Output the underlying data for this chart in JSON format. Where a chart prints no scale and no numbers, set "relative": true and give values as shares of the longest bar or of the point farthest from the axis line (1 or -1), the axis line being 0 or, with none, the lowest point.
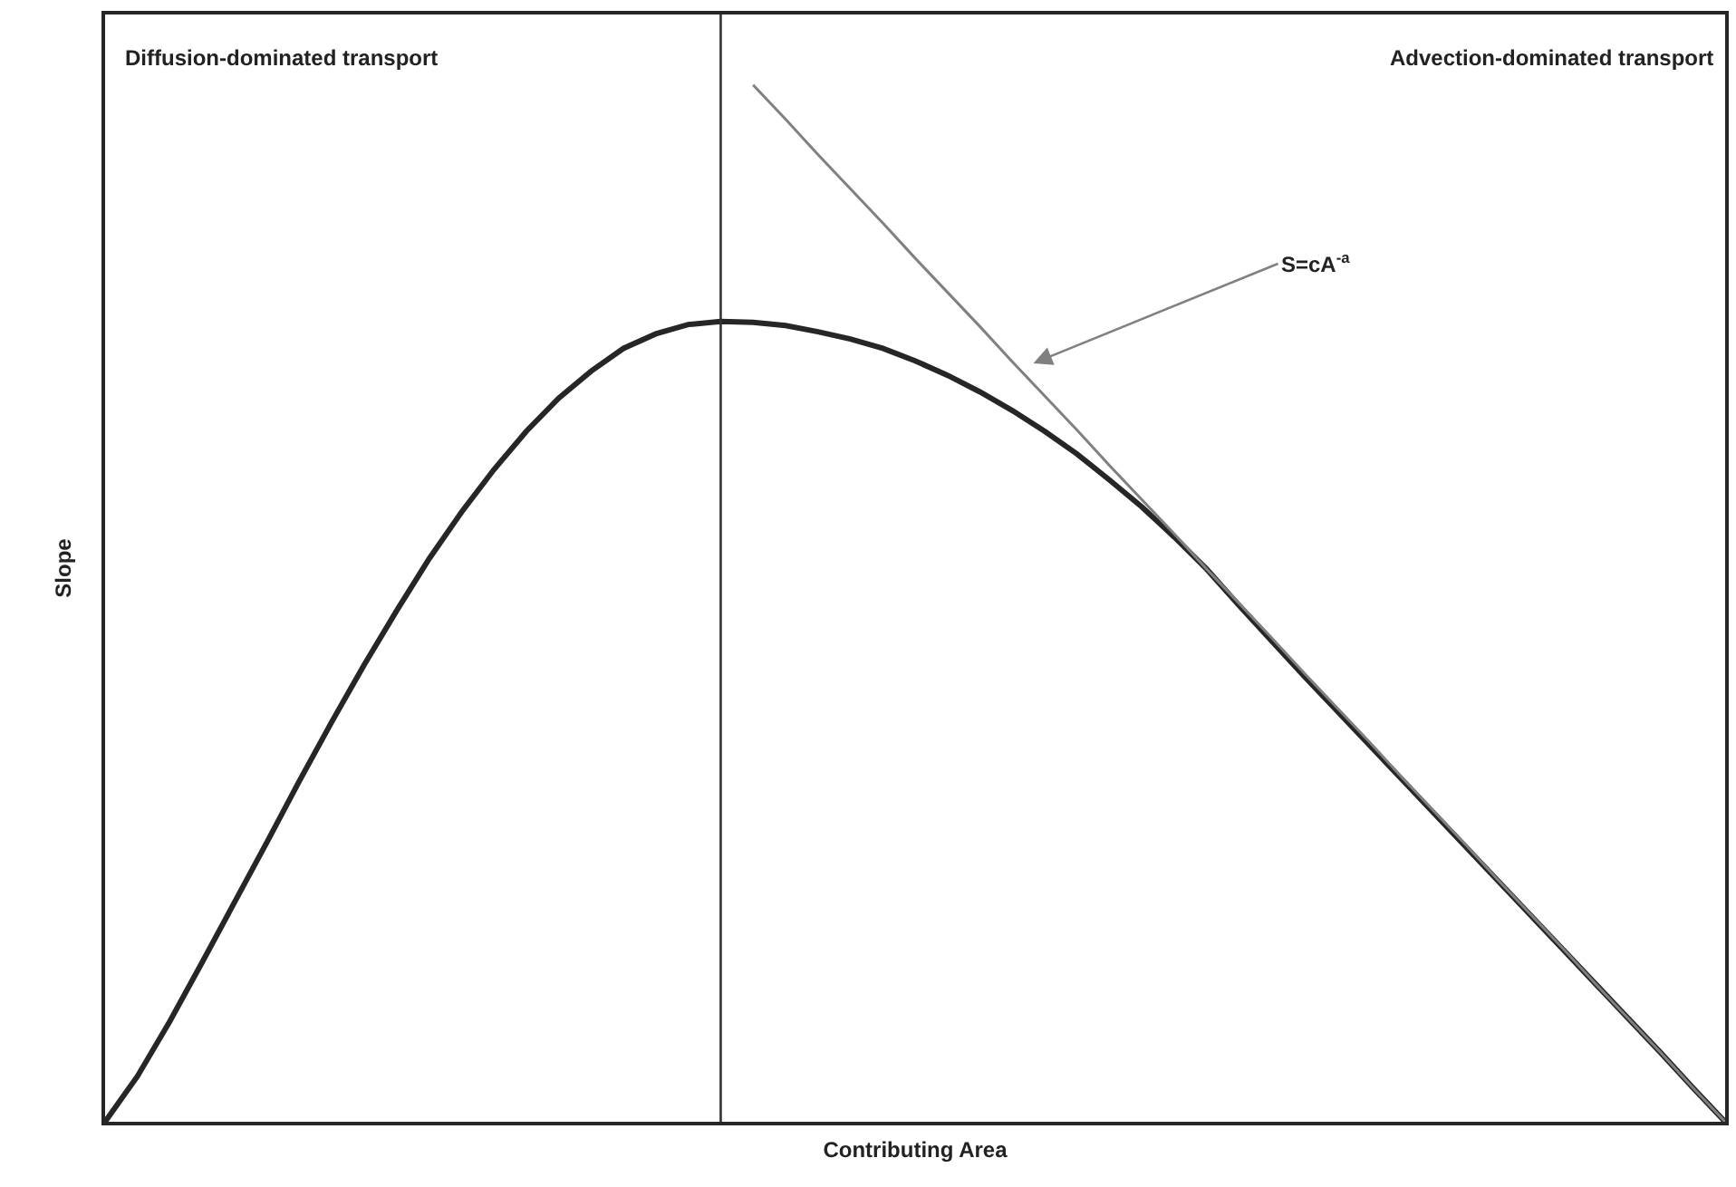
{
  "chart_data": {
    "type": "line",
    "relative": true,
    "xlabel": "Contributing Area",
    "ylabel": "Slope",
    "categories": [
      null,
      null,
      null,
      null,
      null,
      null,
      null,
      null,
      null,
      null,
      null,
      null,
      null,
      null,
      null,
      null,
      null,
      null,
      null,
      null,
      null,
      null,
      null,
      null,
      null,
      null,
      null,
      null,
      null,
      null,
      null,
      null,
      null,
      null,
      null,
      null,
      null,
      null,
      null,
      null,
      null,
      null,
      null,
      null,
      null,
      null,
      null,
      null,
      null,
      null,
      null
    ],
    "series": [
      {
        "color": "#262626",
        "values": [
          0,
          0.044,
          0.097,
          0.154,
          0.212,
          0.27,
          0.329,
          0.386,
          0.441,
          0.493,
          0.543,
          0.588,
          0.629,
          0.666,
          0.698,
          0.724,
          0.746,
          0.76,
          0.769,
          0.772,
          0.771,
          0.768,
          0.762,
          0.755,
          0.746,
          0.734,
          0.72,
          0.704,
          0.686,
          0.666,
          0.644,
          0.619,
          0.593,
          0.564,
          0.533,
          0.498,
          0.464,
          0.43,
          0.397,
          0.364,
          0.331,
          0.298,
          0.265,
          0.232,
          0.199,
          0.166,
          0.133,
          0.1,
          0.067,
          0.033,
          0
        ]
      },
      {
        "color": "#808080",
        "values": [
          null,
          null,
          null,
          null,
          null,
          null,
          null,
          null,
          null,
          null,
          null,
          null,
          null,
          null,
          null,
          null,
          null,
          null,
          null,
          null,
          1,
          0.967,
          0.933,
          0.9,
          0.867,
          0.833,
          0.8,
          0.767,
          0.733,
          0.7,
          0.667,
          0.633,
          0.6,
          0.567,
          0.533,
          0.5,
          0.467,
          0.433,
          0.4,
          0.367,
          0.333,
          0.3,
          0.267,
          0.233,
          0.2,
          0.167,
          0.133,
          0.1,
          0.067,
          0.033,
          0
        ]
      }
    ],
    "annotations": [
      "Diffusion-dominated transport",
      "Advection-dominated transport",
      "S=cA$^{-a}$"
    ],
    "grid": false,
    "marker": "none",
    "line_style": "solid"
  }
}
